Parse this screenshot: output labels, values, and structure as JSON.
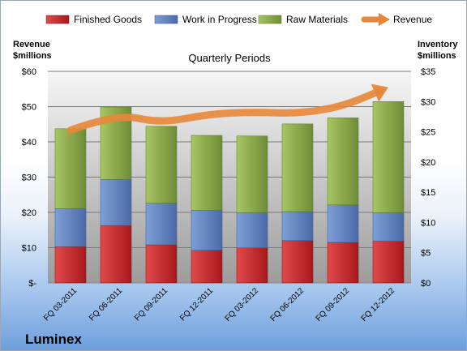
{
  "chart_data": {
    "type": "bar",
    "stacked": true,
    "title": "Quarterly Periods",
    "company": "Luminex",
    "categories": [
      "FQ 03-2011",
      "FQ 06-2011",
      "FQ 09-2011",
      "FQ 12-2011",
      "FQ 03-2012",
      "FQ 06-2012",
      "FQ 09-2012",
      "FQ 12-2012"
    ],
    "series": [
      {
        "name": "Finished Goods",
        "axis": "right",
        "color": "#c0292b",
        "values": [
          6.0,
          9.5,
          6.3,
          5.4,
          5.8,
          7.0,
          6.7,
          6.9
        ]
      },
      {
        "name": "Work in Progress",
        "axis": "right",
        "color": "#5a7fbf",
        "values": [
          6.3,
          7.6,
          6.9,
          6.6,
          5.8,
          4.8,
          6.2,
          4.7
        ]
      },
      {
        "name": "Raw Materials",
        "axis": "right",
        "color": "#8aac46",
        "values": [
          13.2,
          12.0,
          12.7,
          12.4,
          12.7,
          14.5,
          14.4,
          18.4
        ]
      },
      {
        "name": "Revenue",
        "axis": "left",
        "type": "line",
        "color": "#e8873a",
        "values": [
          43.3,
          48.0,
          45.3,
          47.8,
          48.5,
          48.0,
          50.0,
          55.5
        ]
      }
    ],
    "left_axis": {
      "label_line1": "Revenue",
      "label_line2": "$millions",
      "ylim": [
        0,
        60
      ],
      "ticks": [
        0,
        10,
        20,
        30,
        40,
        50,
        60
      ],
      "tick_labels": [
        "$-",
        "$10",
        "$20",
        "$30",
        "$40",
        "$50",
        "$60"
      ]
    },
    "right_axis": {
      "label_line1": "Inventory",
      "label_line2": "$millions",
      "ylim": [
        0,
        35
      ],
      "ticks": [
        0,
        5,
        10,
        15,
        20,
        25,
        30,
        35
      ],
      "tick_labels": [
        "$0",
        "$5",
        "$10",
        "$15",
        "$20",
        "$25",
        "$30",
        "$35"
      ]
    },
    "grid": true,
    "legend": "top"
  }
}
